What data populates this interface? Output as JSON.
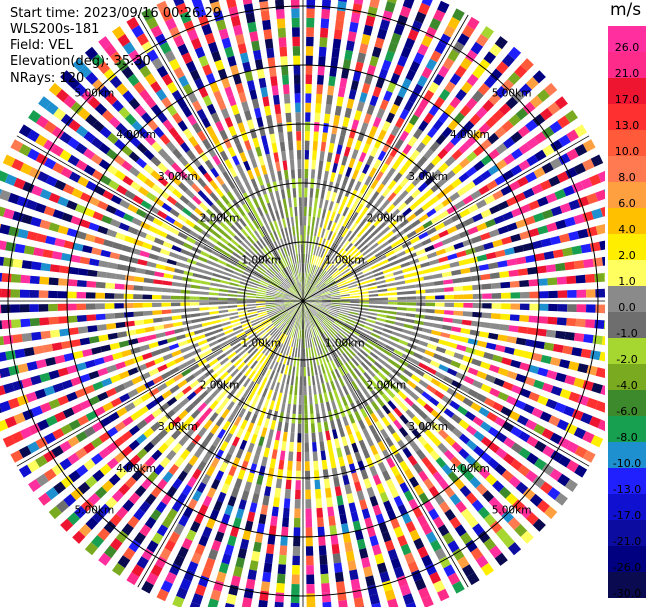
{
  "header": {
    "start_time": "Start time: 2023/09/16 00:26:29",
    "instrument": "WLS200s-181",
    "field": "Field: VEL",
    "elevation": "Elevation(deg): 35.30",
    "nrays": "NRays: 120"
  },
  "chart_data": {
    "type": "heatmap",
    "projection": "polar-ppi",
    "field": "VEL",
    "units": "m/s",
    "nrays": 120,
    "elevation_deg": 35.3,
    "range_rings_km": [
      1,
      2,
      3,
      4,
      5
    ],
    "ring_labels": [
      "1.00km",
      "2.00km",
      "3.00km",
      "4.00km",
      "5.00km"
    ],
    "max_range_km": 5.6,
    "grid_spokes": 12,
    "colorbar": {
      "unit_label": "m/s",
      "ticks": [
        "26.0",
        "21.0",
        "17.0",
        "13.0",
        "10.0",
        "8.0",
        "6.0",
        "4.0",
        "2.0",
        "1.0",
        "0.0",
        "-1.0",
        "-2.0",
        "-4.0",
        "-6.0",
        "-8.0",
        "-10.0",
        "-13.0",
        "-17.0",
        "-21.0",
        "-26.0",
        "-30.0"
      ],
      "bins": [
        {
          "from": 26.0,
          "to": 30.0,
          "color": "#ff2fa0"
        },
        {
          "from": 21.0,
          "to": 26.0,
          "color": "#ff2b8a"
        },
        {
          "from": 17.0,
          "to": 21.0,
          "color": "#ee1530"
        },
        {
          "from": 13.0,
          "to": 17.0,
          "color": "#ff3030"
        },
        {
          "from": 10.0,
          "to": 13.0,
          "color": "#ff5a3a"
        },
        {
          "from": 8.0,
          "to": 10.0,
          "color": "#ff7a50"
        },
        {
          "from": 6.0,
          "to": 8.0,
          "color": "#ffa040"
        },
        {
          "from": 4.0,
          "to": 6.0,
          "color": "#ffc000"
        },
        {
          "from": 2.0,
          "to": 4.0,
          "color": "#ffee00"
        },
        {
          "from": 1.0,
          "to": 2.0,
          "color": "#ffff60"
        },
        {
          "from": 0.0,
          "to": 1.0,
          "color": "#8a8a8a"
        },
        {
          "from": -1.0,
          "to": 0.0,
          "color": "#6e6e6e"
        },
        {
          "from": -2.0,
          "to": -1.0,
          "color": "#a6d630"
        },
        {
          "from": -4.0,
          "to": -2.0,
          "color": "#7aaa20"
        },
        {
          "from": -6.0,
          "to": -4.0,
          "color": "#3c8a2c"
        },
        {
          "from": -8.0,
          "to": -6.0,
          "color": "#16a050"
        },
        {
          "from": -10.0,
          "to": -8.0,
          "color": "#1e90d0"
        },
        {
          "from": -13.0,
          "to": -10.0,
          "color": "#2020ff"
        },
        {
          "from": -17.0,
          "to": -13.0,
          "color": "#1010d0"
        },
        {
          "from": -21.0,
          "to": -17.0,
          "color": "#0c0ca0"
        },
        {
          "from": -26.0,
          "to": -21.0,
          "color": "#000080"
        },
        {
          "from": -30.0,
          "to": -26.0,
          "color": "#0a0a50"
        }
      ]
    }
  }
}
